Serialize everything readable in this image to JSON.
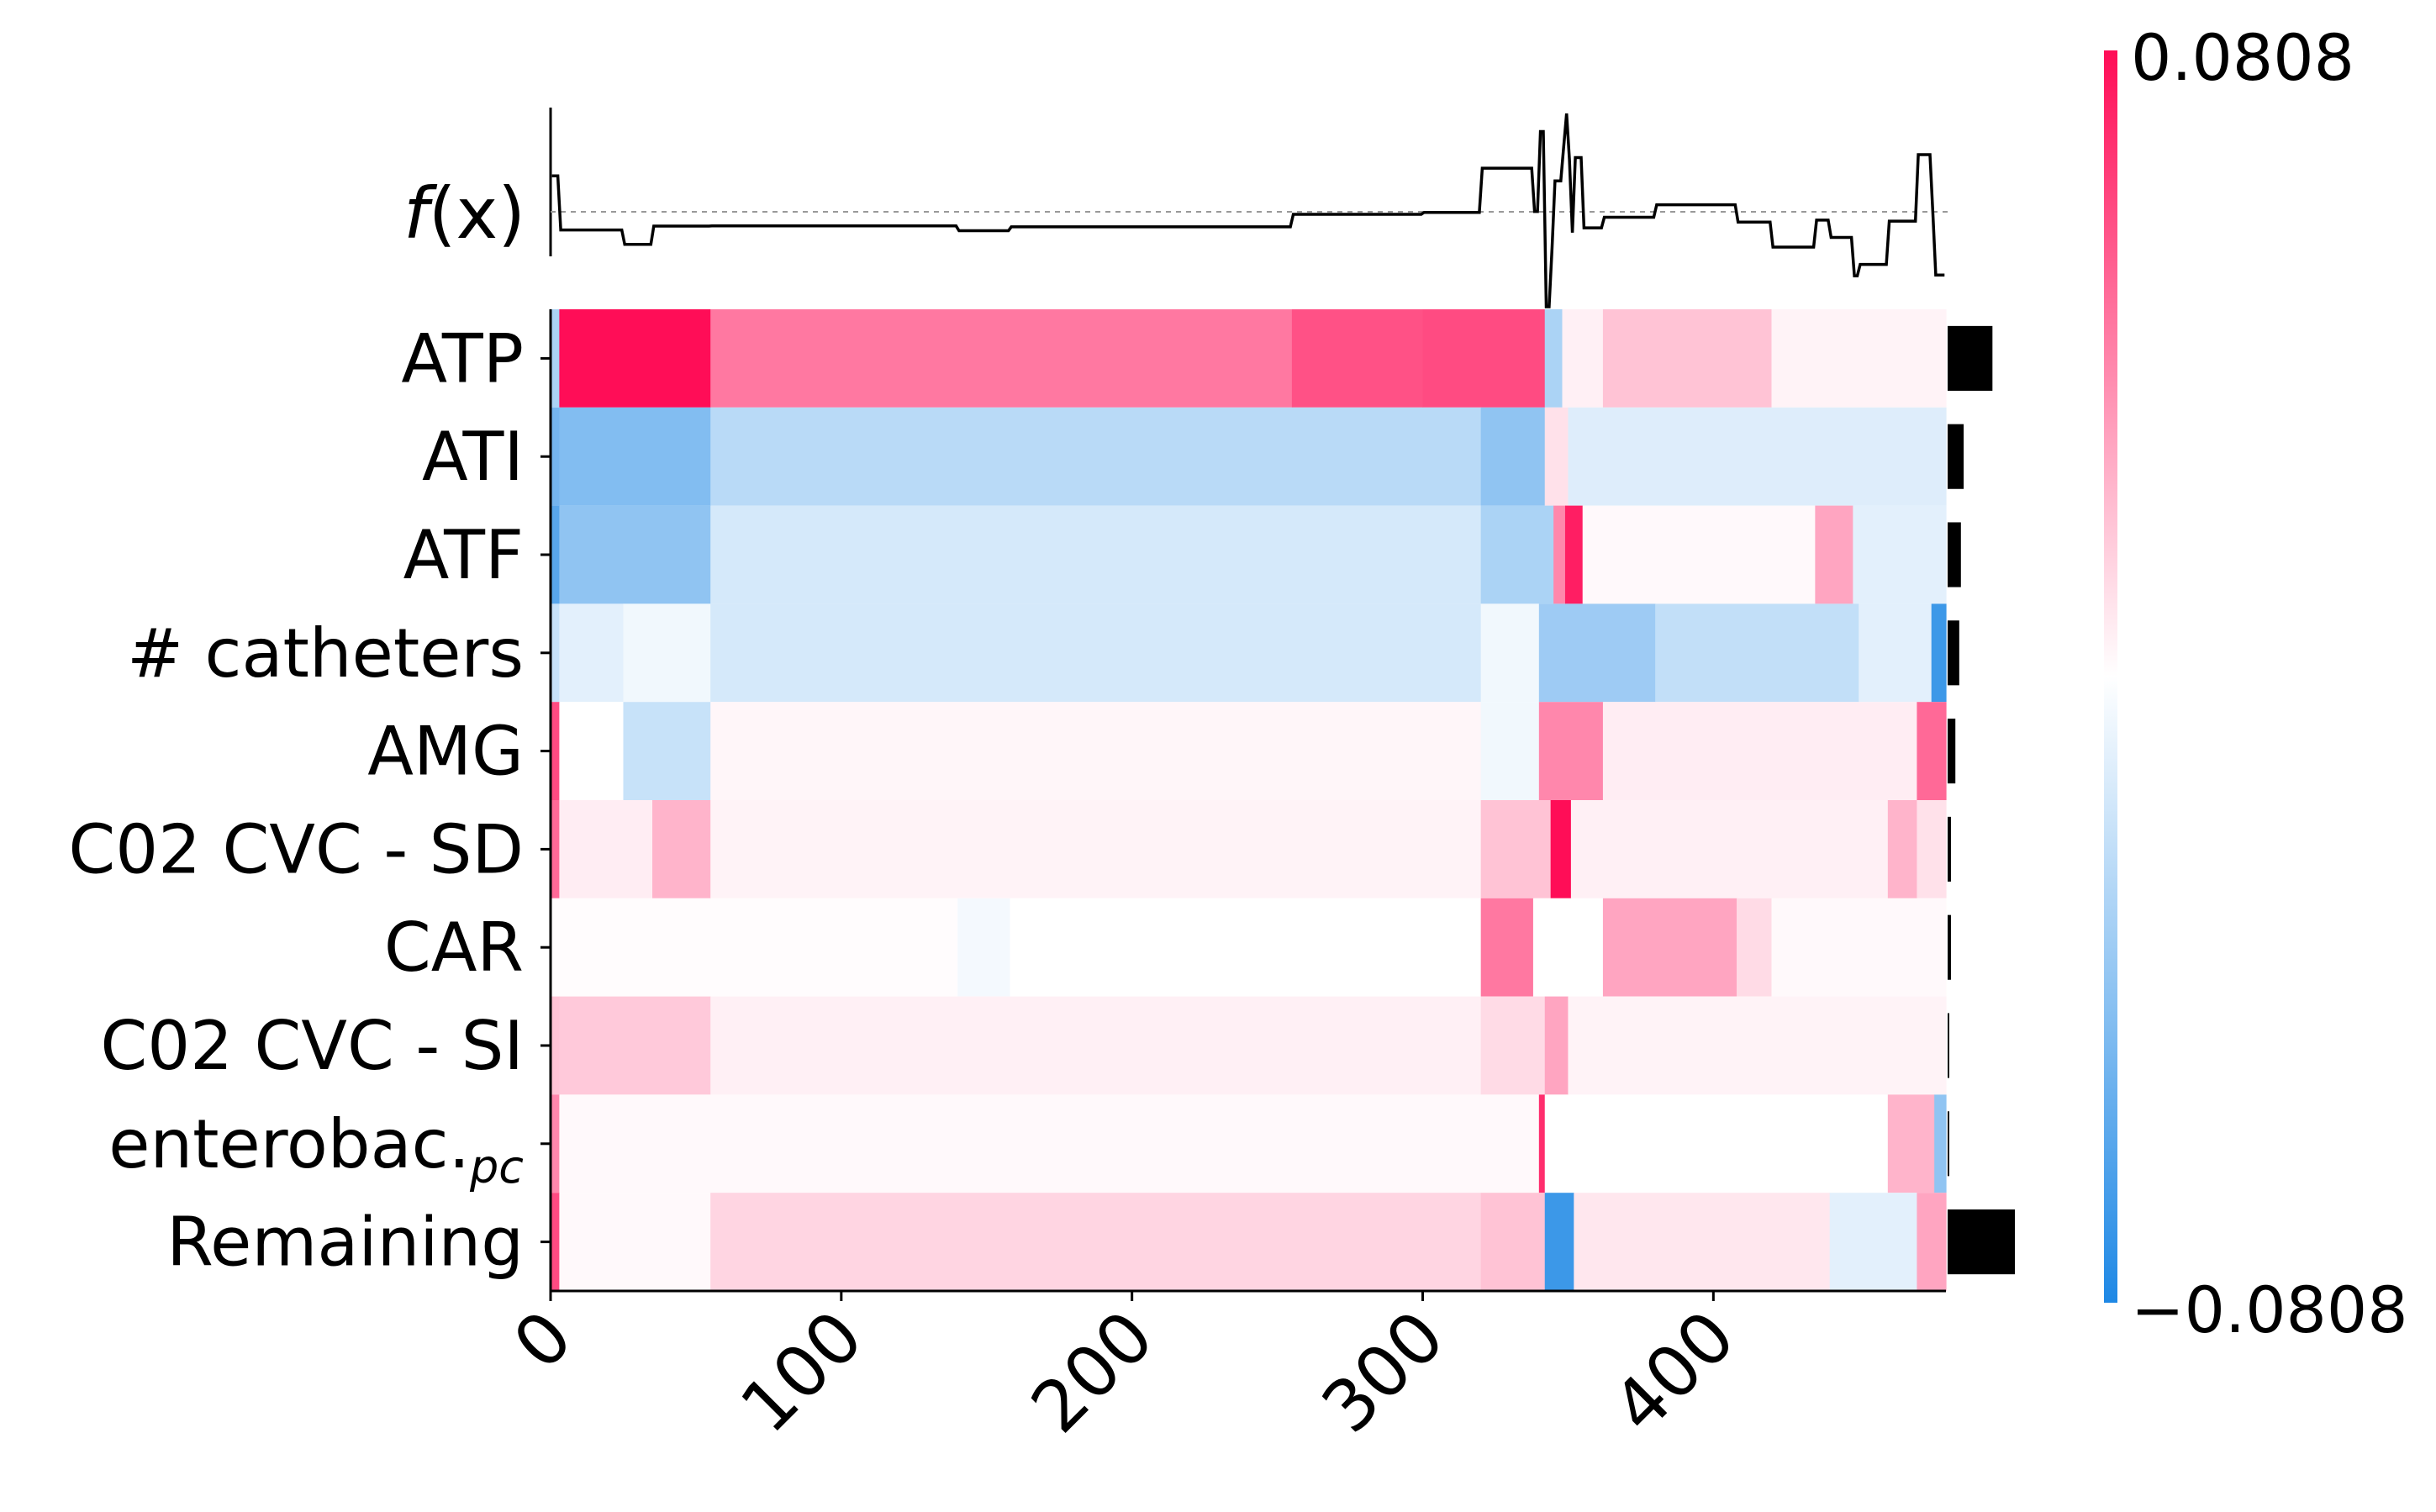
{
  "chart_data": {
    "type": "heatmap",
    "title": "",
    "xlabel": "",
    "ylabel": "",
    "n_samples": 480,
    "xlim": [
      0,
      480
    ],
    "xticks": [
      0,
      100,
      200,
      300,
      400
    ],
    "xtick_labels": [
      "0",
      "100",
      "200",
      "300",
      "400"
    ],
    "features": [
      "ATP",
      "ATI",
      "ATF",
      "# catheters",
      "AMG",
      "C02 CVC - SD",
      "CAR",
      "C02 CVC - SI",
      "enterobac.",
      "Remaining"
    ],
    "feature_subscripts": [
      "",
      "",
      "",
      "",
      "",
      "",
      "",
      "",
      "pc",
      ""
    ],
    "fx_label_main": "f",
    "fx_label_arg": "(x)",
    "colorbar": {
      "min": -0.0808,
      "max": 0.0808,
      "min_label": "−0.0808",
      "max_label": "0.0808",
      "low_color": "#1e88e5",
      "mid_color": "#ffffff",
      "high_color": "#ff0d57"
    },
    "importance": [
      0.0162,
      0.0058,
      0.0048,
      0.0042,
      0.0028,
      0.0012,
      0.0012,
      0.0005,
      0.0005,
      0.0243
    ],
    "segments": [
      [
        [
          0,
          3,
          -0.03
        ],
        [
          3,
          55,
          0.0808
        ],
        [
          55,
          255,
          0.045
        ],
        [
          255,
          300,
          0.058
        ],
        [
          300,
          342,
          0.06
        ],
        [
          342,
          348,
          -0.03
        ],
        [
          348,
          362,
          0.005
        ],
        [
          362,
          420,
          0.02
        ],
        [
          420,
          480,
          0.004
        ]
      ],
      [
        [
          0,
          3,
          -0.05
        ],
        [
          3,
          55,
          -0.045
        ],
        [
          55,
          320,
          -0.025
        ],
        [
          320,
          342,
          -0.04
        ],
        [
          342,
          350,
          0.01
        ],
        [
          350,
          480,
          -0.012
        ]
      ],
      [
        [
          0,
          3,
          -0.06
        ],
        [
          3,
          55,
          -0.04
        ],
        [
          55,
          320,
          -0.015
        ],
        [
          320,
          345,
          -0.03
        ],
        [
          345,
          349,
          0.04
        ],
        [
          349,
          355,
          0.075
        ],
        [
          355,
          435,
          0.002
        ],
        [
          435,
          448,
          0.03
        ],
        [
          448,
          480,
          -0.01
        ]
      ],
      [
        [
          0,
          3,
          -0.02
        ],
        [
          3,
          25,
          -0.01
        ],
        [
          25,
          55,
          -0.005
        ],
        [
          55,
          320,
          -0.015
        ],
        [
          320,
          340,
          -0.005
        ],
        [
          340,
          380,
          -0.035
        ],
        [
          380,
          450,
          -0.022
        ],
        [
          450,
          475,
          -0.01
        ],
        [
          475,
          480,
          -0.07
        ]
      ],
      [
        [
          0,
          3,
          0.06
        ],
        [
          3,
          25,
          0.0
        ],
        [
          25,
          55,
          -0.02
        ],
        [
          55,
          320,
          0.003
        ],
        [
          320,
          340,
          -0.005
        ],
        [
          340,
          362,
          0.04
        ],
        [
          362,
          470,
          0.006
        ],
        [
          470,
          480,
          0.05
        ]
      ],
      [
        [
          0,
          3,
          0.05
        ],
        [
          3,
          35,
          0.006
        ],
        [
          35,
          55,
          0.025
        ],
        [
          55,
          320,
          0.004
        ],
        [
          320,
          344,
          0.02
        ],
        [
          344,
          351,
          0.0808
        ],
        [
          351,
          460,
          0.005
        ],
        [
          460,
          470,
          0.025
        ],
        [
          470,
          480,
          0.01
        ]
      ],
      [
        [
          0,
          140,
          0.001
        ],
        [
          140,
          158,
          -0.004
        ],
        [
          158,
          320,
          0.0
        ],
        [
          320,
          338,
          0.045
        ],
        [
          338,
          362,
          0.0
        ],
        [
          362,
          408,
          0.03
        ],
        [
          408,
          420,
          0.012
        ],
        [
          420,
          480,
          0.002
        ]
      ],
      [
        [
          0,
          3,
          0.02
        ],
        [
          3,
          55,
          0.018
        ],
        [
          55,
          320,
          0.005
        ],
        [
          320,
          342,
          0.012
        ],
        [
          342,
          350,
          0.03
        ],
        [
          350,
          480,
          0.004
        ]
      ],
      [
        [
          0,
          3,
          0.04
        ],
        [
          3,
          340,
          0.002
        ],
        [
          340,
          342,
          0.07
        ],
        [
          342,
          460,
          0.0
        ],
        [
          460,
          476,
          0.025
        ],
        [
          476,
          480,
          -0.04
        ]
      ],
      [
        [
          0,
          3,
          0.06
        ],
        [
          3,
          55,
          0.002
        ],
        [
          55,
          320,
          0.014
        ],
        [
          320,
          342,
          0.02
        ],
        [
          342,
          352,
          -0.07
        ],
        [
          352,
          440,
          0.008
        ],
        [
          440,
          470,
          -0.01
        ],
        [
          470,
          480,
          0.03
        ]
      ]
    ]
  }
}
